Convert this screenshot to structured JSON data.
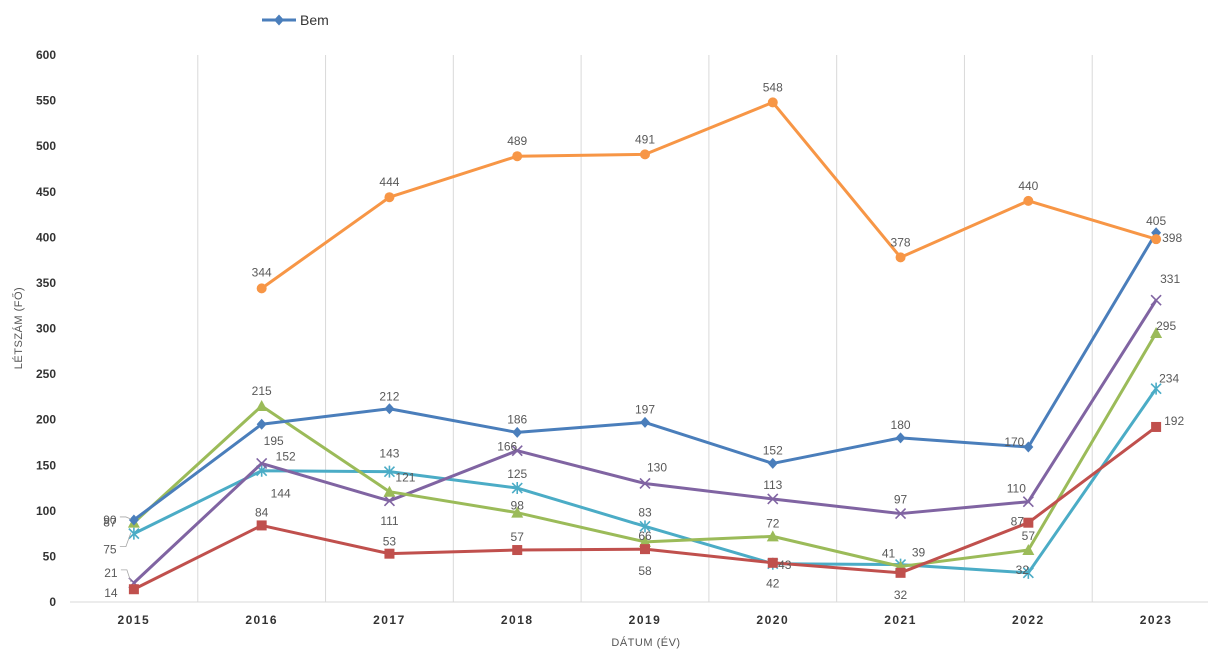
{
  "chart_data": {
    "type": "line",
    "xlabel": "DÁTUM (ÉV)",
    "ylabel": "LÉTSZÁM (FŐ)",
    "ylim": [
      0,
      600
    ],
    "yticks": [
      0,
      50,
      100,
      150,
      200,
      250,
      300,
      350,
      400,
      450,
      500,
      550,
      600
    ],
    "grid": "vertical",
    "legend": "top-left",
    "categories": [
      "2015",
      "2016",
      "2017",
      "2018",
      "2019",
      "2020",
      "2021",
      "2022",
      "2023"
    ],
    "series": [
      {
        "name": "Bem",
        "color": "#4a7ebb",
        "marker": "diamond",
        "values": [
          90,
          195,
          212,
          186,
          197,
          152,
          180,
          170,
          405
        ]
      },
      {
        "color": "#f79646",
        "marker": "circle",
        "values": [
          null,
          344,
          444,
          489,
          491,
          548,
          378,
          440,
          398
        ]
      },
      {
        "color": "#c0504d",
        "marker": "square",
        "values": [
          14,
          84,
          53,
          57,
          58,
          43,
          32,
          87,
          192
        ]
      },
      {
        "color": "#9bbb59",
        "marker": "triangle",
        "values": [
          87,
          215,
          121,
          98,
          66,
          72,
          39,
          57,
          295
        ]
      },
      {
        "color": "#8064a2",
        "marker": "x",
        "values": [
          21,
          152,
          111,
          166,
          130,
          113,
          97,
          110,
          331
        ]
      },
      {
        "color": "#4bacc6",
        "marker": "star",
        "values": [
          75,
          144,
          143,
          125,
          83,
          42,
          41,
          32,
          234
        ]
      }
    ]
  }
}
